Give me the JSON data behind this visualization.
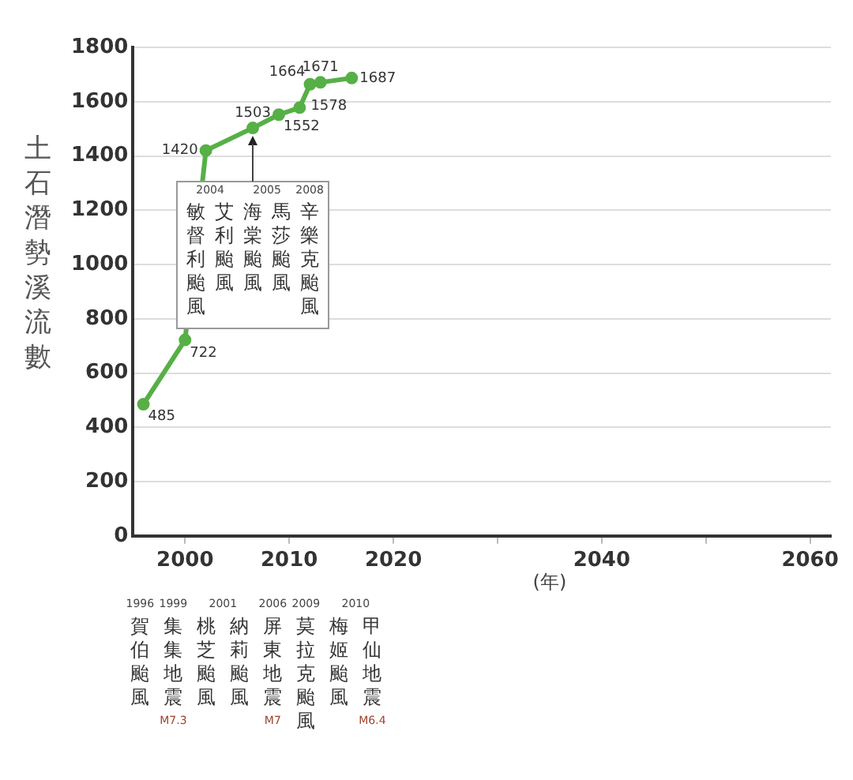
{
  "chart_data": {
    "type": "line",
    "ylabel": "土石潛勢溪流數",
    "xlabel": "(年)",
    "series": [
      {
        "color": "#56b046",
        "x": [
          1996,
          2000,
          2002,
          2006.5,
          2009,
          2011,
          2012,
          2013,
          2016
        ],
        "values": [
          485,
          722,
          1420,
          1503,
          1552,
          1578,
          1664,
          1671,
          1687
        ]
      }
    ],
    "xlim": [
      1995,
      2062
    ],
    "xticks": [
      2000,
      2010,
      2020,
      {
        "value": 2030,
        "label": null
      },
      2040,
      {
        "value": 2050,
        "label": null
      },
      2060
    ],
    "ylim": [
      0,
      1800
    ],
    "yticks": [
      0,
      200,
      400,
      600,
      800,
      1000,
      1200,
      1400,
      1600,
      1800
    ],
    "grid": "y",
    "marker": "circle",
    "line_style": "solid",
    "data_labels": true,
    "legend": false,
    "annotations": [
      "2004",
      "2005",
      "2008",
      "敏督利颱風",
      "艾利颱風",
      "海棠颱風",
      "馬莎颱風",
      "辛樂克颱風",
      "1996",
      "1999",
      "2001",
      "2006",
      "2009",
      "2010",
      "賀伯颱風",
      "集集地震",
      "桃芝颱風",
      "納莉颱風",
      "屏東地震",
      "莫拉克颱風",
      "梅姬颱風",
      "甲仙地震",
      "M7.3",
      "M7",
      "M6.4"
    ]
  }
}
